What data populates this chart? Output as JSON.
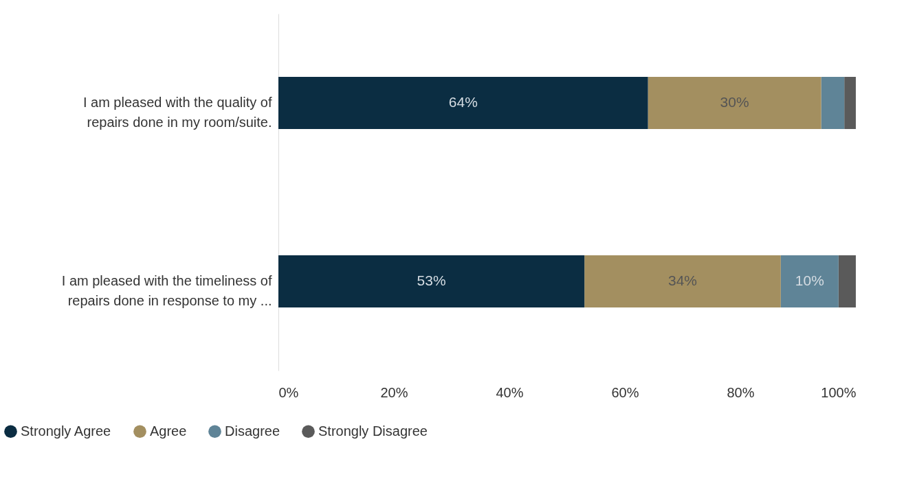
{
  "chart_data": {
    "type": "bar",
    "orientation": "horizontal",
    "stacked": true,
    "categories": [
      "I am pleased with the quality of repairs done in my room/suite.",
      "I am pleased with the timeliness of repairs done in response to my ..."
    ],
    "series": [
      {
        "name": "Strongly Agree",
        "color": "#0b2d42",
        "values": [
          64,
          53
        ],
        "value_labels": [
          "64%",
          "53%"
        ]
      },
      {
        "name": "Agree",
        "color": "#a38f60",
        "values": [
          30,
          34
        ],
        "value_labels": [
          "30%",
          "34%"
        ]
      },
      {
        "name": "Disagree",
        "color": "#5f8497",
        "values": [
          4,
          10
        ],
        "value_labels": [
          null,
          "10%"
        ]
      },
      {
        "name": "Strongly Disagree",
        "color": "#5a5a5a",
        "values": [
          2,
          3
        ],
        "value_labels": [
          null,
          null
        ]
      }
    ],
    "xlim": [
      0,
      100
    ],
    "xticks": [
      {
        "value": 0,
        "label": "0%"
      },
      {
        "value": 20,
        "label": "20%"
      },
      {
        "value": 40,
        "label": "40%"
      },
      {
        "value": 60,
        "label": "60%"
      },
      {
        "value": 80,
        "label": "80%"
      },
      {
        "value": 100,
        "label": "100%"
      }
    ],
    "grid": false,
    "legend": "bottom left"
  }
}
